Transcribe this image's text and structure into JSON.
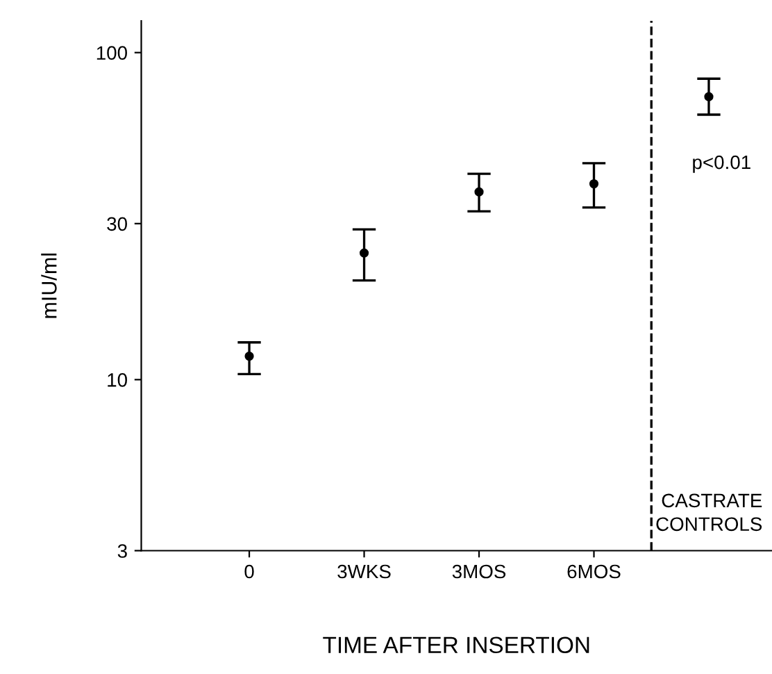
{
  "chart_data": {
    "type": "scatter",
    "xlabel": "TIME AFTER INSERTION",
    "ylabel": "mIU/ml",
    "categories": [
      "0",
      "3WKS",
      "3MOS",
      "6MOS",
      null
    ],
    "values": [
      11.8,
      24.4,
      37.5,
      39.7,
      73.3
    ],
    "errors": [
      [
        10.4,
        13.0
      ],
      [
        20.1,
        28.8
      ],
      [
        32.7,
        42.6
      ],
      [
        33.6,
        45.9
      ],
      [
        64.6,
        83.2
      ]
    ],
    "color": "#000000",
    "marker": "circle",
    "log": true,
    "ylim": [
      3,
      125
    ],
    "yticks": [
      3,
      10,
      30,
      100
    ],
    "annotations": [
      "p<0.01",
      "CASTRATE\nCONTROLS"
    ],
    "grid": false
  }
}
